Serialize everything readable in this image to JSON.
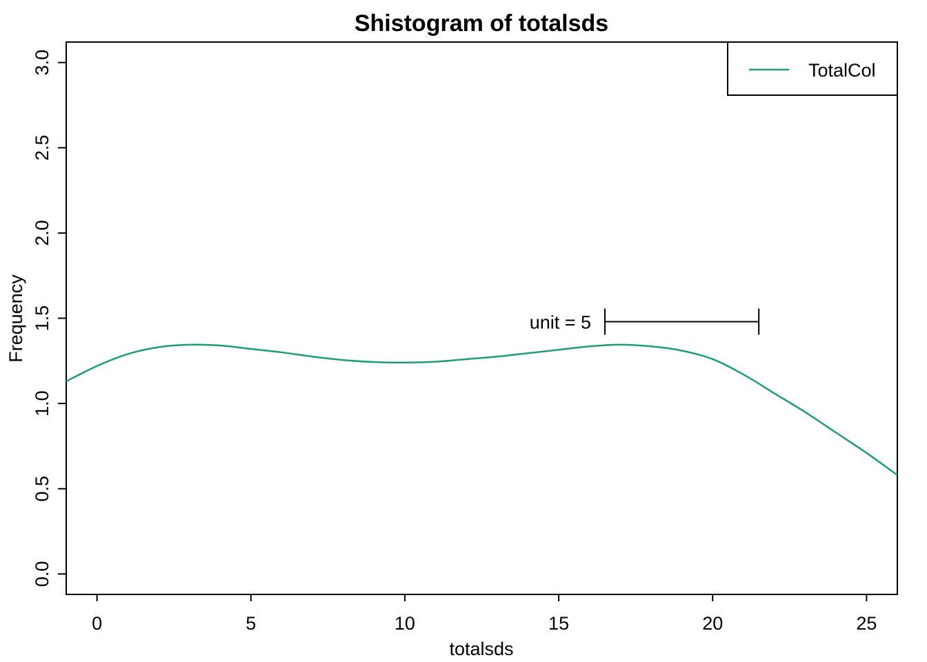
{
  "chart_data": {
    "type": "line",
    "title": "Shistogram of totalsds",
    "xlabel": "totalsds",
    "ylabel": "Frequency",
    "xlim": [
      -1,
      26
    ],
    "ylim": [
      -0.12,
      3.12
    ],
    "xticks": [
      0,
      5,
      10,
      15,
      20,
      25
    ],
    "yticks": [
      "0.0",
      "0.5",
      "1.0",
      "1.5",
      "2.0",
      "2.5",
      "3.0"
    ],
    "grid": false,
    "legend": {
      "position": "top-right",
      "entries": [
        "TotalCol"
      ]
    },
    "series": [
      {
        "name": "TotalCol",
        "color": "#1b9e77",
        "x": [
          -1,
          0,
          1,
          2,
          3,
          4,
          5,
          6,
          7,
          8,
          9,
          10,
          11,
          12,
          13,
          14,
          15,
          16,
          17,
          18,
          19,
          20,
          21,
          22,
          23,
          24,
          25,
          26
        ],
        "y": [
          1.13,
          1.22,
          1.29,
          1.33,
          1.345,
          1.34,
          1.32,
          1.3,
          1.275,
          1.255,
          1.243,
          1.24,
          1.245,
          1.26,
          1.275,
          1.295,
          1.315,
          1.335,
          1.345,
          1.335,
          1.31,
          1.26,
          1.17,
          1.06,
          0.95,
          0.83,
          0.71,
          0.58
        ]
      }
    ],
    "annotation": {
      "label": "unit = 5",
      "x_start": 16.5,
      "x_end": 21.5,
      "y": 1.48
    }
  }
}
